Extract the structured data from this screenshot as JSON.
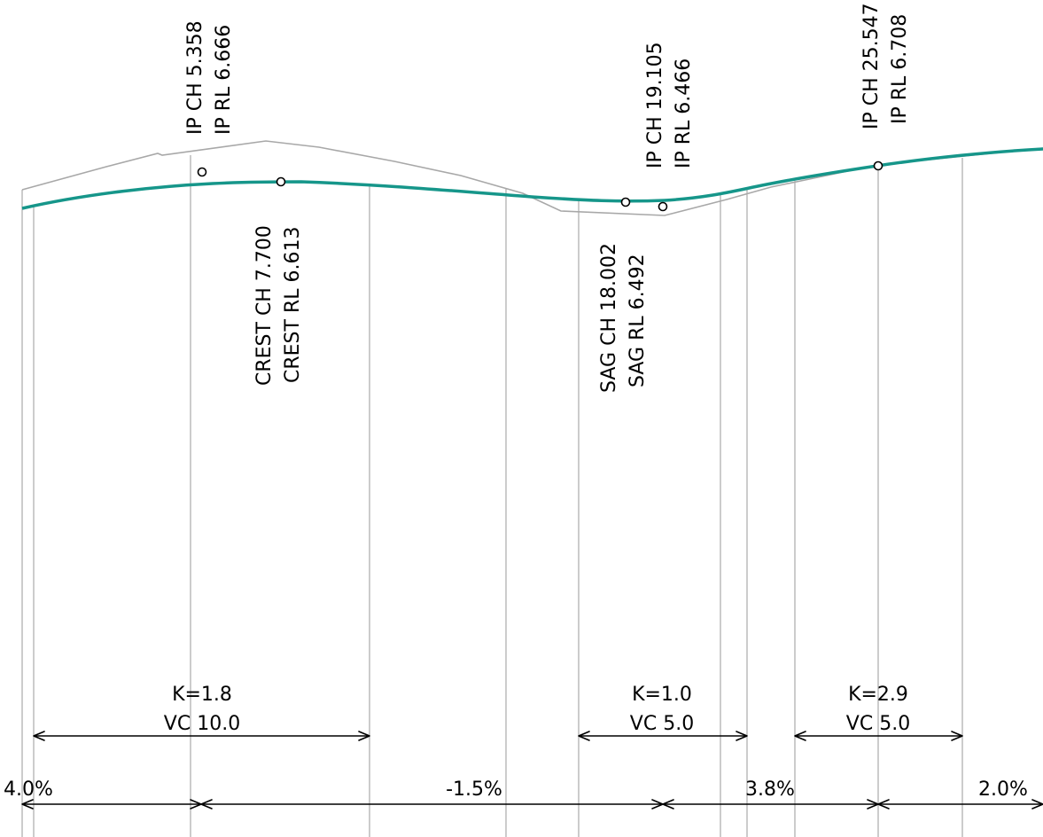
{
  "colors": {
    "design_line": "#16968a",
    "ground_line": "#a8a8a8",
    "ref_lines": "#9a9a9a",
    "text": "#000000"
  },
  "annotations": {
    "ip1": {
      "line1": "IP CH 5.358",
      "line2": "IP RL 6.666"
    },
    "crest": {
      "line1": "CREST CH 7.700",
      "line2": "CREST RL 6.613"
    },
    "ip2": {
      "line1": "IP CH 19.105",
      "line2": "IP RL 6.466"
    },
    "sag": {
      "line1": "SAG CH 18.002",
      "line2": "SAG RL 6.492"
    },
    "ip3": {
      "line1": "IP CH 25.547",
      "line2": "IP RL 6.708"
    }
  },
  "vertical_curves": [
    {
      "k": "K=1.8",
      "vc": "VC 10.0"
    },
    {
      "k": "K=1.0",
      "vc": "VC 5.0"
    },
    {
      "k": "K=2.9",
      "vc": "VC 5.0"
    }
  ],
  "grades": [
    "4.0%",
    "-1.5%",
    "3.8%",
    "2.0%"
  ]
}
